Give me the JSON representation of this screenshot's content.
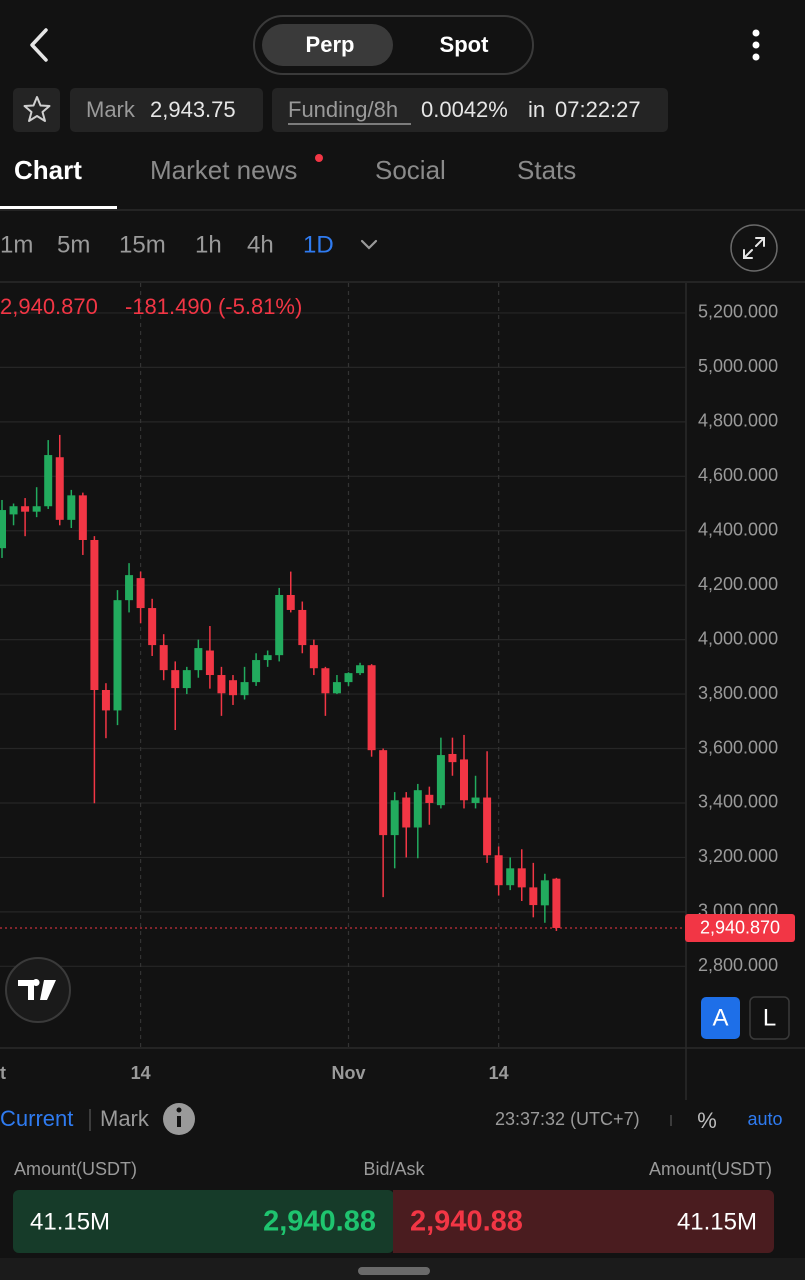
{
  "header": {
    "tabs": [
      "Perp",
      "Spot"
    ]
  },
  "info": {
    "mark_label": "Mark",
    "mark_value": "2,943.75",
    "funding_label": "Funding/8h",
    "funding_rate": "0.0042%",
    "in_label": "in",
    "countdown": "07:22:27"
  },
  "tabs": [
    "Chart",
    "Market news",
    "Social",
    "Stats"
  ],
  "intervals": [
    "1m",
    "5m",
    "15m",
    "1h",
    "4h",
    "1D"
  ],
  "chart_data": {
    "type": "candlestick",
    "last_price": {
      "value": 2940.87,
      "label": "2,940.870"
    },
    "change": "-181.490 (-5.81%)",
    "up_color": "#22ab5e",
    "down_color": "#f23645",
    "grid": true,
    "categories": [
      "t",
      null,
      null,
      null,
      null,
      null,
      null,
      null,
      null,
      null,
      null,
      null,
      "14",
      null,
      null,
      null,
      null,
      null,
      null,
      null,
      null,
      null,
      null,
      null,
      null,
      null,
      null,
      null,
      null,
      null,
      "Nov",
      null,
      null,
      null,
      null,
      null,
      null,
      null,
      null,
      null,
      null,
      null,
      null,
      "14",
      null,
      null,
      null,
      null,
      null
    ],
    "open": [
      4336,
      4460,
      4490,
      4470,
      4490,
      4670,
      4440,
      4530,
      4366,
      3815,
      3740,
      4145,
      4226,
      4116,
      3980,
      3888,
      3822,
      3888,
      3960,
      3870,
      3851,
      3796,
      3844,
      3925,
      3943,
      4164,
      4109,
      3980,
      3895,
      3803,
      3844,
      3877,
      3906,
      3594,
      3282,
      3420,
      3310,
      3430,
      3392,
      3580,
      3560,
      3400,
      3420,
      3208,
      3098,
      3160,
      3090,
      3024,
      3122
    ],
    "high": [
      4513,
      4500,
      4520,
      4560,
      4733,
      4752,
      4550,
      4540,
      4380,
      3840,
      4182,
      4281,
      4250,
      4150,
      4020,
      3920,
      3900,
      4000,
      4050,
      3900,
      3870,
      3900,
      3950,
      3960,
      4190,
      4250,
      4140,
      4000,
      3900,
      3870,
      3880,
      3915,
      3910,
      3600,
      3440,
      3440,
      3470,
      3460,
      3640,
      3640,
      3650,
      3500,
      3590,
      3240,
      3200,
      3230,
      3180,
      3140,
      3125
    ],
    "low": [
      4300,
      4420,
      4380,
      4450,
      4480,
      4420,
      4410,
      4311,
      3399,
      3638,
      3686,
      4100,
      4060,
      3940,
      3851,
      3668,
      3800,
      3860,
      3820,
      3720,
      3760,
      3780,
      3830,
      3900,
      3920,
      4100,
      3950,
      3870,
      3720,
      3800,
      3830,
      3870,
      3570,
      3054,
      3160,
      3200,
      3197,
      3320,
      3380,
      3500,
      3380,
      3380,
      3180,
      3060,
      3080,
      3040,
      2980,
      2960,
      2930
    ],
    "close": [
      4476,
      4490,
      4470,
      4490,
      4678,
      4440,
      4530,
      4366,
      3815,
      3740,
      4145,
      4237,
      4116,
      3980,
      3888,
      3822,
      3888,
      3969,
      3870,
      3803,
      3796,
      3844,
      3925,
      3943,
      4164,
      4109,
      3980,
      3895,
      3803,
      3844,
      3877,
      3906,
      3594,
      3282,
      3410,
      3310,
      3447,
      3400,
      3576,
      3550,
      3410,
      3420,
      3208,
      3098,
      3160,
      3090,
      3025,
      3116,
      2940.87
    ],
    "ylim": [
      2500,
      5310
    ],
    "yticks": [
      {
        "value": 2800,
        "label": "2,800.000"
      },
      {
        "value": 3000,
        "label": "3,000.000"
      },
      {
        "value": 3200,
        "label": "3,200.000"
      },
      {
        "value": 3400,
        "label": "3,400.000"
      },
      {
        "value": 3600,
        "label": "3,600.000"
      },
      {
        "value": 3800,
        "label": "3,800.000"
      },
      {
        "value": 4000,
        "label": "4,000.000"
      },
      {
        "value": 4200,
        "label": "4,200.000"
      },
      {
        "value": 4400,
        "label": "4,400.000"
      },
      {
        "value": 4600,
        "label": "4,600.000"
      },
      {
        "value": 4800,
        "label": "4,800.000"
      },
      {
        "value": 5000,
        "label": "5,000.000"
      },
      {
        "value": 5200,
        "label": "5,200.000"
      }
    ]
  },
  "scale_buttons": [
    "A",
    "L"
  ],
  "chart_footer": {
    "price_types": [
      "Current",
      "Mark"
    ],
    "time": "23:37:32 (UTC+7)",
    "percent": "%",
    "auto": "auto"
  },
  "order_book": {
    "headers": [
      "Amount(USDT)",
      "Bid/Ask",
      "Amount(USDT)"
    ],
    "bid_amount": "41.15M",
    "bid": "2,940.88",
    "ask": "2,940.88",
    "ask_amount": "41.15M"
  }
}
